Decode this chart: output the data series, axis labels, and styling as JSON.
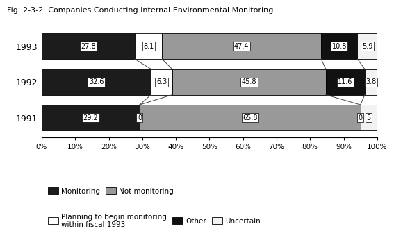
{
  "years": [
    "1991",
    "1992",
    "1993"
  ],
  "categories": [
    "Monitoring",
    "Planning",
    "Not monitoring",
    "Other",
    "Uncertain"
  ],
  "values": {
    "1991": [
      29.2,
      0,
      65.8,
      0,
      5.0
    ],
    "1992": [
      32.6,
      6.3,
      45.8,
      11.6,
      3.8
    ],
    "1993": [
      27.8,
      8.1,
      47.4,
      10.8,
      5.9
    ]
  },
  "colors": [
    "#1c1c1c",
    "#ffffff",
    "#999999",
    "#111111",
    "#f2f2f2"
  ],
  "edgecolors": [
    "#000000",
    "#000000",
    "#000000",
    "#000000",
    "#000000"
  ],
  "hatch": [
    "",
    "",
    "",
    "",
    ""
  ],
  "bar_height": 0.72,
  "title": "Fig. 2-3-2  Companies Conducting Internal Environmental Monitoring",
  "title_fontsize": 8,
  "legend_labels_row1": [
    "Monitoring",
    "Not monitoring"
  ],
  "legend_labels_row2": [
    "Planning to begin monitoring\nwithin fiscal 1993",
    "Other",
    "Uncertain"
  ],
  "legend_colors_row1": [
    "#1c1c1c",
    "#999999"
  ],
  "legend_colors_row2": [
    "#ffffff",
    "#111111",
    "#f2f2f2"
  ],
  "background_color": "#ffffff",
  "line_color": "#444444",
  "line_lw": 0.7,
  "label_fontsize": 7,
  "ytick_fontsize": 9,
  "xtick_fontsize": 7.5
}
